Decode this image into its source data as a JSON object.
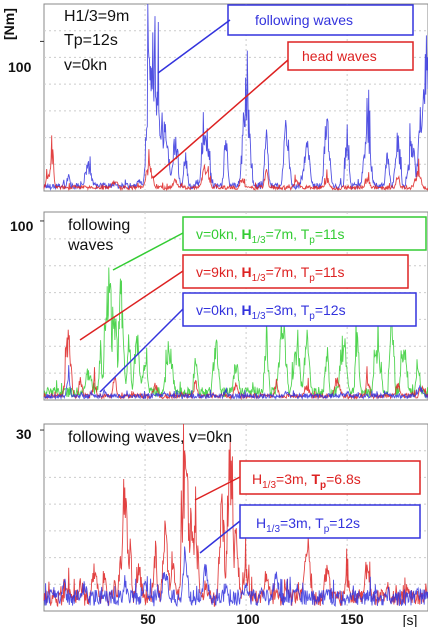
{
  "chart_data": [
    {
      "type": "line",
      "x_range": [
        0,
        190
      ],
      "ylim": [
        0,
        125
      ],
      "y_unit_label": "[Nm]",
      "y_ticks": [
        100
      ],
      "annotations": [
        "H1/3=9m",
        "Tp=12s",
        "v=0kn"
      ],
      "legend_position": "top-right",
      "grid": true,
      "series": [
        {
          "name": "following waves",
          "color": "#3333dd",
          "peaks": [
            [
              12,
              12
            ],
            [
              22,
              20
            ],
            [
              35,
              6
            ],
            [
              47,
              8
            ],
            [
              52,
              100
            ],
            [
              54,
              112
            ],
            [
              56,
              85
            ],
            [
              58,
              60
            ],
            [
              60,
              50
            ],
            [
              65,
              40
            ],
            [
              70,
              30
            ],
            [
              80,
              50
            ],
            [
              90,
              45
            ],
            [
              100,
              80
            ],
            [
              110,
              45
            ],
            [
              120,
              55
            ],
            [
              130,
              35
            ],
            [
              140,
              55
            ],
            [
              150,
              45
            ],
            [
              160,
              50
            ],
            [
              170,
              30
            ],
            [
              175,
              40
            ],
            [
              182,
              35
            ],
            [
              187,
              65
            ],
            [
              189,
              110
            ]
          ],
          "baseline": 3
        },
        {
          "name": "head waves",
          "color": "#dd2222",
          "peaks": [
            [
              2,
              15
            ],
            [
              4,
              30
            ],
            [
              15,
              4
            ],
            [
              35,
              8
            ],
            [
              52,
              20
            ],
            [
              65,
              10
            ],
            [
              80,
              20
            ],
            [
              98,
              10
            ],
            [
              110,
              15
            ],
            [
              125,
              8
            ],
            [
              140,
              10
            ],
            [
              160,
              10
            ],
            [
              175,
              12
            ],
            [
              185,
              14
            ]
          ],
          "baseline": 2
        }
      ]
    },
    {
      "type": "line",
      "x_range": [
        0,
        190
      ],
      "ylim": [
        0,
        105
      ],
      "y_ticks": [
        100
      ],
      "annotations": [
        "following waves"
      ],
      "legend_position": "top-right",
      "grid": true,
      "series": [
        {
          "name": "v=0kn, H1/3=7m, Tp=11s",
          "color": "#33cc33",
          "peaks": [
            [
              22,
              20
            ],
            [
              28,
              30
            ],
            [
              32,
              80
            ],
            [
              35,
              55
            ],
            [
              38,
              70
            ],
            [
              42,
              45
            ],
            [
              46,
              40
            ],
            [
              50,
              25
            ],
            [
              62,
              35
            ],
            [
              75,
              30
            ],
            [
              85,
              40
            ],
            [
              95,
              25
            ],
            [
              110,
              45
            ],
            [
              118,
              50
            ],
            [
              125,
              35
            ],
            [
              130,
              40
            ],
            [
              140,
              30
            ],
            [
              148,
              38
            ],
            [
              155,
              45
            ],
            [
              165,
              35
            ],
            [
              172,
              60
            ],
            [
              178,
              40
            ],
            [
              185,
              30
            ]
          ],
          "baseline": 4
        },
        {
          "name": "v=9kn, H1/3=7m, Tp=11s",
          "color": "#dd2222",
          "peaks": [
            [
              12,
              40
            ],
            [
              18,
              15
            ],
            [
              25,
              12
            ],
            [
              35,
              15
            ],
            [
              55,
              10
            ],
            [
              75,
              12
            ],
            [
              95,
              10
            ],
            [
              115,
              12
            ],
            [
              130,
              10
            ],
            [
              145,
              14
            ],
            [
              160,
              12
            ],
            [
              175,
              10
            ],
            [
              187,
              10
            ]
          ],
          "baseline": 2
        },
        {
          "name": "v=0kn, H1/3=3m, Tp=12s",
          "color": "#3333dd",
          "peaks": [
            [
              12,
              15
            ],
            [
              30,
              6
            ],
            [
              60,
              5
            ],
            [
              90,
              6
            ],
            [
              120,
              5
            ],
            [
              150,
              6
            ],
            [
              170,
              5
            ],
            [
              186,
              8
            ]
          ],
          "baseline": 2
        }
      ]
    },
    {
      "type": "line",
      "x_range": [
        0,
        190
      ],
      "ylim": [
        0,
        31
      ],
      "x_ticks": [
        50,
        100,
        150
      ],
      "x_unit_label": "[s]",
      "y_ticks": [
        30
      ],
      "annotations": [
        "following waves, v=0kn"
      ],
      "legend_position": "right",
      "grid": true,
      "series": [
        {
          "name": "H1/3=3m, Tp=6.8s",
          "color": "#dd2222",
          "peaks": [
            [
              5,
              3
            ],
            [
              12,
              5
            ],
            [
              18,
              6
            ],
            [
              25,
              8
            ],
            [
              30,
              9
            ],
            [
              35,
              6
            ],
            [
              38,
              12
            ],
            [
              40,
              25
            ],
            [
              42,
              10
            ],
            [
              47,
              8
            ],
            [
              55,
              12
            ],
            [
              60,
              16
            ],
            [
              64,
              8
            ],
            [
              70,
              29
            ],
            [
              73,
              20
            ],
            [
              75,
              14
            ],
            [
              80,
              6
            ],
            [
              88,
              22
            ],
            [
              92,
              31
            ],
            [
              95,
              16
            ],
            [
              100,
              8
            ],
            [
              110,
              8
            ],
            [
              120,
              6
            ],
            [
              130,
              14
            ],
            [
              140,
              8
            ],
            [
              150,
              7
            ],
            [
              160,
              10
            ],
            [
              170,
              6
            ],
            [
              180,
              4
            ]
          ],
          "baseline": 2
        },
        {
          "name": "H1/3=3m, Tp=12s",
          "color": "#3333dd",
          "peaks": [
            [
              5,
              4
            ],
            [
              10,
              6
            ],
            [
              20,
              5
            ],
            [
              30,
              3
            ],
            [
              40,
              6
            ],
            [
              50,
              5
            ],
            [
              60,
              8
            ],
            [
              70,
              10
            ],
            [
              80,
              8
            ],
            [
              90,
              6
            ],
            [
              100,
              5
            ],
            [
              108,
              4
            ],
            [
              115,
              7
            ],
            [
              125,
              5
            ],
            [
              140,
              4
            ],
            [
              150,
              3
            ],
            [
              160,
              3
            ],
            [
              170,
              3
            ],
            [
              185,
              4
            ]
          ],
          "baseline": 2
        }
      ]
    }
  ],
  "colors": {
    "blue": "#3333dd",
    "red": "#dd2222",
    "green": "#33cc33",
    "grid": "#cccccc",
    "axis": "#333333"
  }
}
